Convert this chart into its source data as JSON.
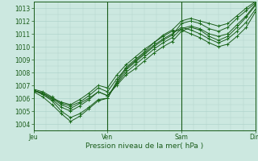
{
  "title": "",
  "xlabel": "Pression niveau de la mer( hPa )",
  "ylabel": "",
  "bg_color": "#cce8e0",
  "grid_color": "#b0d4cc",
  "line_color": "#1a5c1a",
  "marker_color": "#1a6e1a",
  "xlim": [
    0,
    72
  ],
  "ylim": [
    1003.5,
    1013.5
  ],
  "yticks": [
    1004,
    1005,
    1006,
    1007,
    1008,
    1009,
    1010,
    1011,
    1012,
    1013
  ],
  "xtick_labels": [
    "Jeu",
    "Ven",
    "Sam",
    "Dim"
  ],
  "xtick_positions": [
    0,
    24,
    48,
    72
  ],
  "series": [
    [
      0,
      1006.6,
      3,
      1006.4,
      6,
      1006.0,
      9,
      1005.5,
      12,
      1005.2,
      15,
      1005.6,
      18,
      1006.0,
      21,
      1006.5,
      24,
      1006.2,
      27,
      1007.0,
      30,
      1007.8,
      33,
      1008.3,
      36,
      1008.9,
      39,
      1009.5,
      42,
      1010.0,
      45,
      1010.4,
      48,
      1011.2,
      51,
      1011.5,
      54,
      1011.3,
      57,
      1010.8,
      60,
      1010.5,
      63,
      1010.8,
      66,
      1011.5,
      69,
      1012.3,
      72,
      1013.2
    ],
    [
      0,
      1006.6,
      3,
      1006.3,
      6,
      1005.8,
      9,
      1005.0,
      12,
      1004.5,
      15,
      1004.8,
      18,
      1005.3,
      21,
      1005.9,
      24,
      1006.0,
      27,
      1007.2,
      30,
      1008.2,
      33,
      1008.8,
      36,
      1009.4,
      39,
      1010.0,
      42,
      1010.5,
      45,
      1010.9,
      48,
      1011.8,
      51,
      1012.0,
      54,
      1011.8,
      57,
      1011.4,
      60,
      1011.2,
      63,
      1011.5,
      66,
      1012.2,
      69,
      1012.8,
      72,
      1013.4
    ],
    [
      0,
      1006.7,
      3,
      1006.5,
      6,
      1006.1,
      9,
      1005.6,
      12,
      1005.4,
      15,
      1005.7,
      18,
      1006.2,
      21,
      1006.8,
      24,
      1006.5,
      27,
      1007.5,
      30,
      1008.3,
      33,
      1008.9,
      36,
      1009.5,
      39,
      1010.1,
      42,
      1010.6,
      45,
      1011.0,
      48,
      1011.5,
      51,
      1011.3,
      54,
      1011.0,
      57,
      1010.6,
      60,
      1010.3,
      63,
      1010.6,
      66,
      1011.2,
      69,
      1011.9,
      72,
      1012.9
    ],
    [
      0,
      1006.6,
      3,
      1006.4,
      6,
      1006.0,
      9,
      1005.7,
      12,
      1005.5,
      15,
      1005.9,
      18,
      1006.4,
      21,
      1007.0,
      24,
      1006.8,
      27,
      1007.8,
      30,
      1008.6,
      33,
      1009.2,
      36,
      1009.8,
      39,
      1010.3,
      42,
      1010.8,
      45,
      1011.2,
      48,
      1011.3,
      51,
      1011.0,
      54,
      1010.7,
      57,
      1010.3,
      60,
      1010.0,
      63,
      1010.2,
      66,
      1010.8,
      69,
      1011.5,
      72,
      1012.7
    ],
    [
      0,
      1006.5,
      3,
      1006.1,
      6,
      1005.5,
      9,
      1004.8,
      12,
      1004.2,
      15,
      1004.6,
      18,
      1005.2,
      21,
      1005.8,
      24,
      1006.0,
      27,
      1007.3,
      30,
      1008.4,
      33,
      1009.0,
      36,
      1009.6,
      39,
      1010.3,
      42,
      1010.9,
      45,
      1011.3,
      48,
      1012.0,
      51,
      1012.2,
      54,
      1012.0,
      57,
      1011.8,
      60,
      1011.6,
      63,
      1011.8,
      66,
      1012.4,
      69,
      1013.0,
      72,
      1013.5
    ],
    [
      0,
      1006.6,
      3,
      1006.3,
      6,
      1005.9,
      9,
      1005.3,
      12,
      1005.0,
      15,
      1005.4,
      18,
      1005.9,
      21,
      1006.5,
      24,
      1006.2,
      27,
      1007.1,
      30,
      1008.0,
      33,
      1008.6,
      36,
      1009.2,
      39,
      1009.8,
      42,
      1010.3,
      45,
      1010.7,
      48,
      1011.4,
      51,
      1011.6,
      54,
      1011.4,
      57,
      1011.0,
      60,
      1010.8,
      63,
      1011.0,
      66,
      1011.7,
      69,
      1012.4,
      72,
      1013.3
    ]
  ]
}
